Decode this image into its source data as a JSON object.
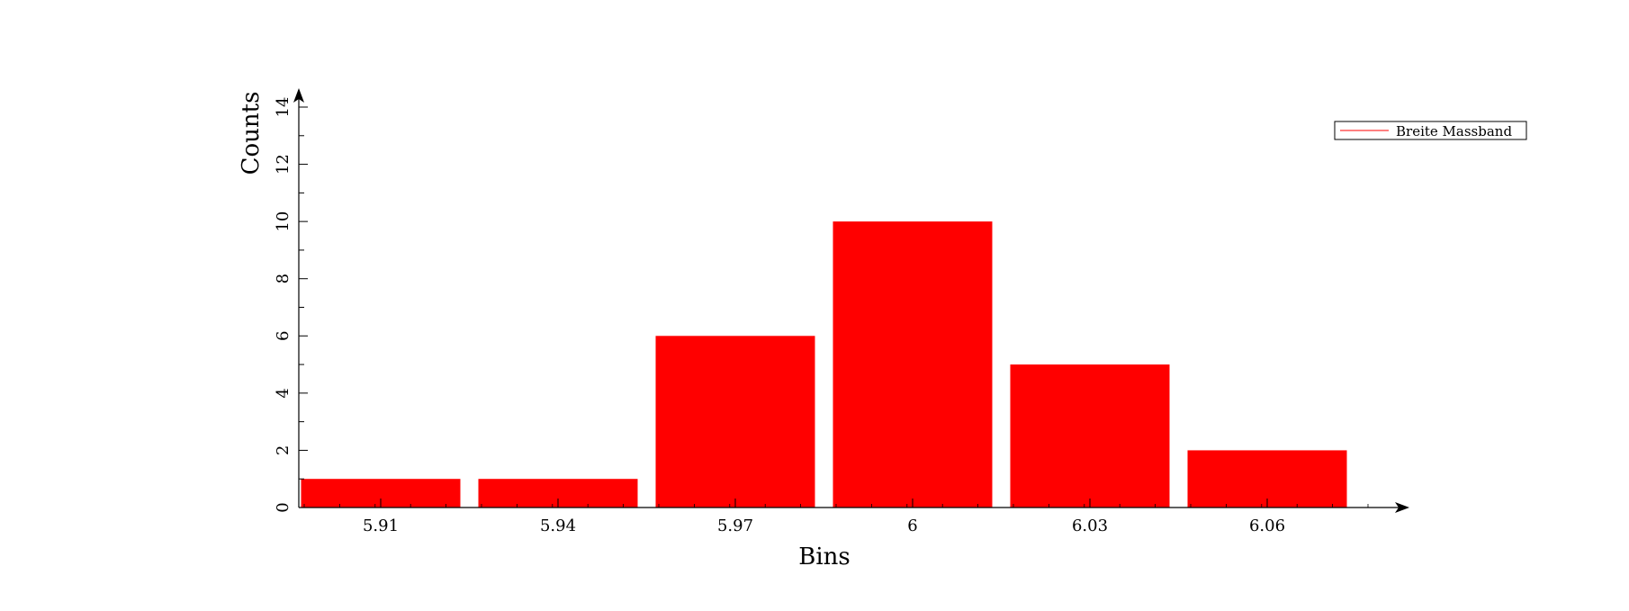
{
  "chart_data": {
    "type": "bar",
    "categories": [
      "5.91",
      "5.94",
      "5.97",
      "6",
      "6.03",
      "6.06"
    ],
    "series": [
      {
        "name": "Breite Massband",
        "values": [
          1,
          1,
          6,
          10,
          5,
          2
        ],
        "color": "#ff0000"
      }
    ],
    "xlabel": "Bins",
    "ylabel": "Counts",
    "ylim": [
      0,
      14
    ],
    "yticks": [
      "0",
      "2",
      "4",
      "6",
      "8",
      "10",
      "12",
      "14"
    ],
    "grid": false,
    "legend_position": "top-right"
  }
}
